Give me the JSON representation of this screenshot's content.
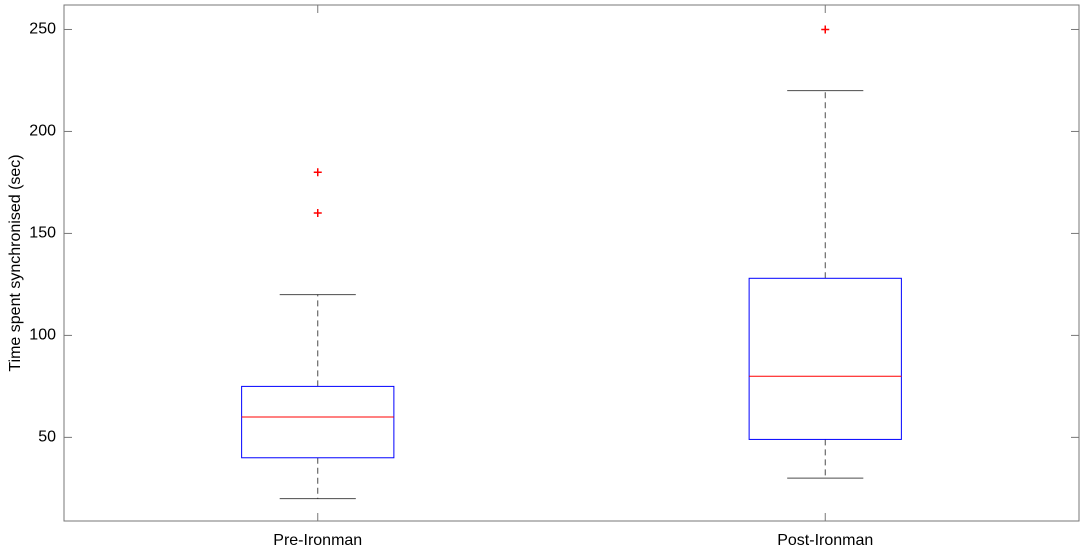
{
  "chart_data": {
    "type": "box",
    "ylabel": "Time spent synchronised (sec)",
    "categories": [
      "Pre-Ironman",
      "Post-Ironman"
    ],
    "whisker_low": [
      20,
      30
    ],
    "q1": [
      40,
      49
    ],
    "median": [
      60,
      80
    ],
    "q3": [
      75,
      128
    ],
    "whisker_high": [
      120,
      220
    ],
    "outliers": [
      [
        160,
        180
      ],
      [
        250
      ]
    ],
    "ylim": [
      9,
      262
    ],
    "yticks": [
      50,
      100,
      150,
      200,
      250
    ],
    "box_color": "#0000ff",
    "median_color": "#ff0000",
    "whisker_color": "#000000",
    "outlier_color": "#ff0000",
    "grid": false
  }
}
